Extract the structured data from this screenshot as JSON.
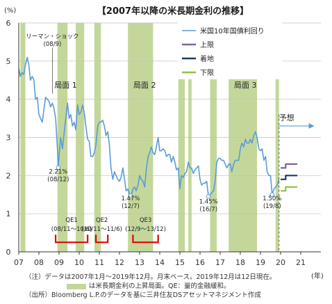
{
  "chart_data": {
    "type": "line",
    "title": "【2007年以降の米長期金利の推移】",
    "ylabel": "(%)",
    "xlabel": "(年)",
    "ylim": [
      0,
      6
    ],
    "xlim": [
      2007.0,
      2022.0
    ],
    "yticks": [
      0,
      1,
      2,
      3,
      4,
      5,
      6
    ],
    "xticks": [
      {
        "v": 2007.0,
        "label": "07"
      },
      {
        "v": 2008.0,
        "label": "08"
      },
      {
        "v": 2009.0,
        "label": "09"
      },
      {
        "v": 2010.0,
        "label": "10"
      },
      {
        "v": 2011.0,
        "label": "11"
      },
      {
        "v": 2012.0,
        "label": "12"
      },
      {
        "v": 2013.0,
        "label": "13"
      },
      {
        "v": 2014.0,
        "label": "14"
      },
      {
        "v": 2015.0,
        "label": "15"
      },
      {
        "v": 2016.0,
        "label": "16"
      },
      {
        "v": 2017.0,
        "label": "17"
      },
      {
        "v": 2018.0,
        "label": "18"
      },
      {
        "v": 2019.0,
        "label": "19"
      },
      {
        "v": 2020.0,
        "label": "20"
      },
      {
        "v": 2021.0,
        "label": "21"
      }
    ],
    "legend": {
      "placement": "top-right",
      "entries": [
        {
          "label": "米国10年国債利回り",
          "color": "#5b9bd5"
        },
        {
          "label": "上限",
          "color": "#8064a2"
        },
        {
          "label": "着地",
          "color": "#1f3864"
        },
        {
          "label": "下限",
          "color": "#92c047"
        }
      ]
    },
    "series": [
      {
        "name": "米国10年国債利回り",
        "color": "#5b9bd5",
        "points": [
          [
            2007.0,
            4.8
          ],
          [
            2007.08,
            4.6
          ],
          [
            2007.17,
            4.7
          ],
          [
            2007.25,
            4.65
          ],
          [
            2007.33,
            4.9
          ],
          [
            2007.42,
            5.1
          ],
          [
            2007.5,
            4.9
          ],
          [
            2007.58,
            4.5
          ],
          [
            2007.67,
            4.6
          ],
          [
            2007.75,
            4.5
          ],
          [
            2007.83,
            4.0
          ],
          [
            2007.92,
            4.05
          ],
          [
            2008.0,
            3.6
          ],
          [
            2008.08,
            3.5
          ],
          [
            2008.17,
            3.4
          ],
          [
            2008.25,
            3.75
          ],
          [
            2008.33,
            4.05
          ],
          [
            2008.42,
            4.0
          ],
          [
            2008.5,
            3.95
          ],
          [
            2008.58,
            3.8
          ],
          [
            2008.67,
            3.9
          ],
          [
            2008.75,
            3.75
          ],
          [
            2008.83,
            3.5
          ],
          [
            2008.92,
            2.7
          ],
          [
            2008.96,
            2.21
          ],
          [
            2009.0,
            2.5
          ],
          [
            2009.08,
            3.0
          ],
          [
            2009.17,
            2.7
          ],
          [
            2009.25,
            3.1
          ],
          [
            2009.33,
            3.5
          ],
          [
            2009.42,
            3.9
          ],
          [
            2009.5,
            3.5
          ],
          [
            2009.58,
            3.6
          ],
          [
            2009.67,
            3.3
          ],
          [
            2009.75,
            3.4
          ],
          [
            2009.83,
            3.2
          ],
          [
            2009.92,
            3.85
          ],
          [
            2010.0,
            3.6
          ],
          [
            2010.08,
            3.65
          ],
          [
            2010.17,
            3.85
          ],
          [
            2010.25,
            3.65
          ],
          [
            2010.33,
            3.3
          ],
          [
            2010.42,
            2.95
          ],
          [
            2010.5,
            2.9
          ],
          [
            2010.58,
            2.5
          ],
          [
            2010.67,
            2.5
          ],
          [
            2010.75,
            2.6
          ],
          [
            2010.83,
            2.8
          ],
          [
            2010.92,
            3.3
          ],
          [
            2011.0,
            3.4
          ],
          [
            2011.08,
            3.4
          ],
          [
            2011.17,
            3.45
          ],
          [
            2011.25,
            3.3
          ],
          [
            2011.33,
            3.05
          ],
          [
            2011.42,
            3.15
          ],
          [
            2011.5,
            2.8
          ],
          [
            2011.58,
            2.2
          ],
          [
            2011.67,
            1.9
          ],
          [
            2011.75,
            2.1
          ],
          [
            2011.83,
            2.0
          ],
          [
            2011.92,
            1.9
          ],
          [
            2012.0,
            1.85
          ],
          [
            2012.08,
            1.95
          ],
          [
            2012.17,
            2.2
          ],
          [
            2012.25,
            1.9
          ],
          [
            2012.33,
            1.6
          ],
          [
            2012.42,
            1.65
          ],
          [
            2012.5,
            1.5
          ],
          [
            2012.55,
            1.47
          ],
          [
            2012.62,
            1.55
          ],
          [
            2012.67,
            1.65
          ],
          [
            2012.75,
            1.7
          ],
          [
            2012.83,
            1.6
          ],
          [
            2012.92,
            1.75
          ],
          [
            2013.0,
            2.0
          ],
          [
            2013.08,
            1.9
          ],
          [
            2013.17,
            1.85
          ],
          [
            2013.25,
            1.7
          ],
          [
            2013.33,
            2.15
          ],
          [
            2013.42,
            2.5
          ],
          [
            2013.5,
            2.6
          ],
          [
            2013.58,
            2.75
          ],
          [
            2013.67,
            2.6
          ],
          [
            2013.75,
            2.55
          ],
          [
            2013.83,
            2.75
          ],
          [
            2013.92,
            3.0
          ],
          [
            2014.0,
            2.65
          ],
          [
            2014.08,
            2.65
          ],
          [
            2014.17,
            2.7
          ],
          [
            2014.25,
            2.65
          ],
          [
            2014.33,
            2.5
          ],
          [
            2014.42,
            2.55
          ],
          [
            2014.5,
            2.55
          ],
          [
            2014.58,
            2.35
          ],
          [
            2014.67,
            2.5
          ],
          [
            2014.75,
            2.35
          ],
          [
            2014.83,
            2.15
          ],
          [
            2014.92,
            2.2
          ],
          [
            2015.0,
            1.65
          ],
          [
            2015.08,
            2.0
          ],
          [
            2015.17,
            1.95
          ],
          [
            2015.25,
            2.05
          ],
          [
            2015.33,
            2.1
          ],
          [
            2015.42,
            2.35
          ],
          [
            2015.5,
            2.2
          ],
          [
            2015.58,
            2.2
          ],
          [
            2015.67,
            2.05
          ],
          [
            2015.75,
            2.15
          ],
          [
            2015.83,
            2.2
          ],
          [
            2015.92,
            2.25
          ],
          [
            2016.0,
            1.9
          ],
          [
            2016.08,
            1.75
          ],
          [
            2016.17,
            1.8
          ],
          [
            2016.25,
            1.8
          ],
          [
            2016.33,
            1.85
          ],
          [
            2016.42,
            1.45
          ],
          [
            2016.5,
            1.5
          ],
          [
            2016.58,
            1.55
          ],
          [
            2016.67,
            1.6
          ],
          [
            2016.75,
            1.85
          ],
          [
            2016.83,
            2.35
          ],
          [
            2016.92,
            2.45
          ],
          [
            2017.0,
            2.45
          ],
          [
            2017.08,
            2.4
          ],
          [
            2017.17,
            2.4
          ],
          [
            2017.25,
            2.3
          ],
          [
            2017.33,
            2.2
          ],
          [
            2017.42,
            2.3
          ],
          [
            2017.5,
            2.3
          ],
          [
            2017.58,
            2.1
          ],
          [
            2017.67,
            2.3
          ],
          [
            2017.75,
            2.4
          ],
          [
            2017.83,
            2.4
          ],
          [
            2017.92,
            2.4
          ],
          [
            2018.0,
            2.7
          ],
          [
            2018.08,
            2.85
          ],
          [
            2018.17,
            2.75
          ],
          [
            2018.25,
            2.95
          ],
          [
            2018.33,
            2.85
          ],
          [
            2018.42,
            2.85
          ],
          [
            2018.5,
            2.95
          ],
          [
            2018.58,
            2.85
          ],
          [
            2018.67,
            3.05
          ],
          [
            2018.75,
            3.15
          ],
          [
            2018.83,
            3.0
          ],
          [
            2018.92,
            2.7
          ],
          [
            2019.0,
            2.65
          ],
          [
            2019.08,
            2.7
          ],
          [
            2019.17,
            2.4
          ],
          [
            2019.25,
            2.5
          ],
          [
            2019.33,
            2.1
          ],
          [
            2019.42,
            2.0
          ],
          [
            2019.5,
            2.0
          ],
          [
            2019.58,
            1.5
          ],
          [
            2019.67,
            1.65
          ],
          [
            2019.75,
            1.7
          ],
          [
            2019.83,
            1.75
          ],
          [
            2019.92,
            1.9
          ]
        ]
      },
      {
        "name": "上限",
        "color": "#8064a2",
        "points": [
          [
            2020.0,
            2.2
          ],
          [
            2020.25,
            2.2
          ],
          [
            2020.25,
            2.3
          ],
          [
            2020.83,
            2.3
          ]
        ]
      },
      {
        "name": "着地",
        "color": "#1f3864",
        "points": [
          [
            2020.0,
            1.9
          ],
          [
            2020.25,
            1.9
          ],
          [
            2020.25,
            2.0
          ],
          [
            2020.83,
            2.0
          ]
        ]
      },
      {
        "name": "下限",
        "color": "#92c047",
        "points": [
          [
            2020.0,
            1.6
          ],
          [
            2020.25,
            1.6
          ],
          [
            2020.25,
            1.7
          ],
          [
            2020.83,
            1.7
          ]
        ]
      }
    ],
    "rising_periods": [
      [
        2007.08,
        2007.33
      ],
      [
        2008.92,
        2009.42
      ],
      [
        2009.83,
        2010.25
      ],
      [
        2010.75,
        2011.08
      ],
      [
        2012.42,
        2013.67
      ],
      [
        2014.92,
        2015.25
      ],
      [
        2015.42,
        2015.58
      ],
      [
        2016.5,
        2016.83
      ],
      [
        2017.42,
        2018.83
      ],
      [
        2019.75,
        2019.92
      ]
    ],
    "qe_periods": [
      {
        "label": "QE1",
        "dates": "(08/11〜10/6)",
        "from": 2008.83,
        "to": 2010.42
      },
      {
        "label": "QE2",
        "dates": "(10/11〜11/6)",
        "from": 2010.83,
        "to": 2011.42
      },
      {
        "label": "QE3",
        "dates": "(12/9〜13/12)",
        "from": 2012.67,
        "to": 2013.92
      }
    ],
    "annotations": [
      {
        "text": "リーマン・ショック",
        "x": 2008.67,
        "y": 5.6
      },
      {
        "text": "(08/9)",
        "x": 2008.67,
        "y": 5.4
      },
      {
        "text": "局面 1",
        "x": 2009.33,
        "y": 4.3
      },
      {
        "text": "局面 2",
        "x": 2013.25,
        "y": 4.3
      },
      {
        "text": "局面 3",
        "x": 2018.25,
        "y": 4.3
      },
      {
        "text": "予想",
        "x": 2020.3,
        "y": 3.45
      },
      {
        "text": "2.21%",
        "x": 2008.96,
        "y": 2.05
      },
      {
        "text": "(08/12)",
        "x": 2008.96,
        "y": 1.85
      },
      {
        "text": "1.47%",
        "x": 2012.55,
        "y": 1.35
      },
      {
        "text": "(12/7)",
        "x": 2012.55,
        "y": 1.15
      },
      {
        "text": "1.45%",
        "x": 2016.42,
        "y": 1.27
      },
      {
        "text": "(16/7)",
        "x": 2016.42,
        "y": 1.07
      },
      {
        "text": "1.50%",
        "x": 2019.58,
        "y": 1.35
      },
      {
        "text": "(19/8)",
        "x": 2019.58,
        "y": 1.15
      }
    ]
  },
  "notes": {
    "note1": "（注）データは2007年1月〜2019年12月。月末ベース。2019年12月は12日現在。",
    "note2": "は米長期金利の上昇局面。QE：量的金融緩和。",
    "source": "（出所）Bloomberg L.P.のデータを基に三井住友DSアセットマネジメント作成"
  }
}
